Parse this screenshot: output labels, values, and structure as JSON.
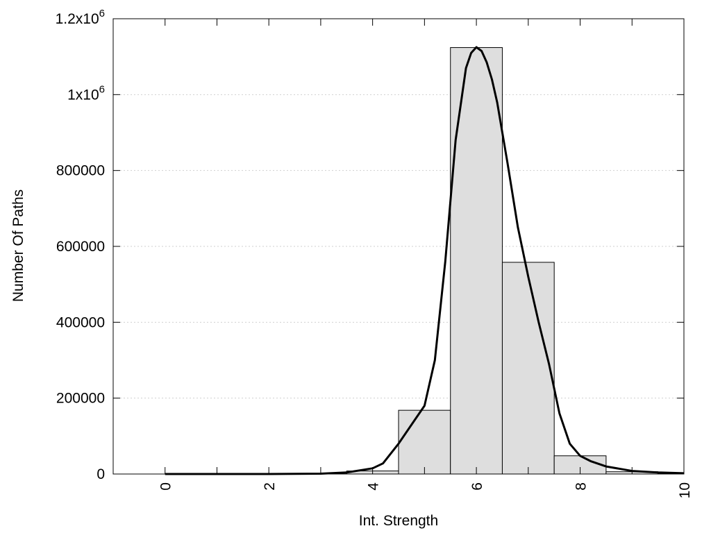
{
  "chart_data": {
    "type": "bar",
    "xlabel": "Int. Strength",
    "ylabel": "Number Of Paths",
    "xlim": [
      -1,
      10
    ],
    "ylim": [
      0,
      1200000
    ],
    "grid": true,
    "x_ticks": [
      {
        "value": 0,
        "label": "0"
      },
      {
        "value": 2,
        "label": "2"
      },
      {
        "value": 4,
        "label": "4"
      },
      {
        "value": 6,
        "label": "6"
      },
      {
        "value": 8,
        "label": "8"
      },
      {
        "value": 10,
        "label": "10"
      }
    ],
    "y_ticks": [
      {
        "value": 0,
        "label": "0",
        "exp": ""
      },
      {
        "value": 200000,
        "label": "200000",
        "exp": ""
      },
      {
        "value": 400000,
        "label": "400000",
        "exp": ""
      },
      {
        "value": 600000,
        "label": "600000",
        "exp": ""
      },
      {
        "value": 800000,
        "label": "800000",
        "exp": ""
      },
      {
        "value": 1000000,
        "label": "1x10",
        "exp": "6"
      },
      {
        "value": 1200000,
        "label": "1.2x10",
        "exp": "6"
      }
    ],
    "bars": [
      {
        "x": 0,
        "value": 0
      },
      {
        "x": 1,
        "value": 0
      },
      {
        "x": 2,
        "value": 0
      },
      {
        "x": 3,
        "value": 500
      },
      {
        "x": 4,
        "value": 8000
      },
      {
        "x": 5,
        "value": 168000
      },
      {
        "x": 6,
        "value": 1124000
      },
      {
        "x": 7,
        "value": 558000
      },
      {
        "x": 8,
        "value": 48000
      },
      {
        "x": 9,
        "value": 6000
      },
      {
        "x": 10,
        "value": 2000
      }
    ],
    "bar_width": 1,
    "series": [
      {
        "type": "line",
        "x": [
          0,
          1,
          2,
          3,
          3.5,
          4,
          4.2,
          4.5,
          4.8,
          5,
          5.2,
          5.4,
          5.6,
          5.8,
          5.9,
          6,
          6.1,
          6.2,
          6.3,
          6.4,
          6.6,
          6.8,
          7,
          7.2,
          7.4,
          7.6,
          7.8,
          8,
          8.2,
          8.5,
          9,
          9.5,
          10
        ],
        "y": [
          0,
          0,
          0,
          1000,
          4000,
          15000,
          28000,
          80000,
          140000,
          180000,
          300000,
          560000,
          880000,
          1070000,
          1110000,
          1125000,
          1115000,
          1085000,
          1040000,
          980000,
          820000,
          650000,
          520000,
          400000,
          290000,
          160000,
          80000,
          48000,
          34000,
          20000,
          8000,
          4000,
          2000
        ]
      }
    ]
  }
}
